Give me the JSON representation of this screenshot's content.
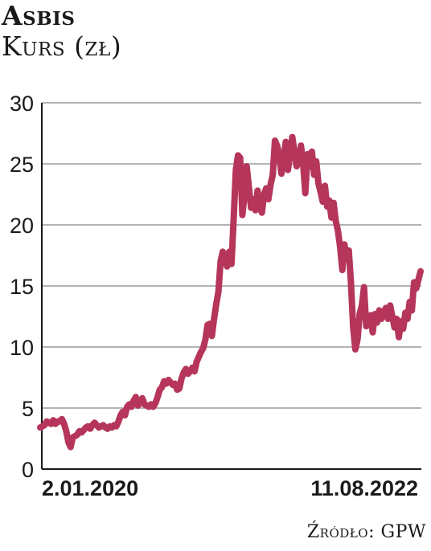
{
  "title": "Asbis",
  "subtitle": "Kurs (zł)",
  "source": "Źródło: GPW",
  "chart_data": {
    "type": "line",
    "ylim": [
      0,
      30
    ],
    "yticks": [
      0,
      5,
      10,
      15,
      20,
      25,
      30
    ],
    "grid": true,
    "line_color": "#b5365a",
    "x_start_label": "2.01.2020",
    "x_end_label": "11.08.2022",
    "series": [
      {
        "values": [
          3.4,
          3.5,
          3.6,
          3.9,
          3.8,
          3.7,
          4.0,
          3.7,
          3.9,
          3.9,
          4.1,
          3.7,
          3.1,
          2.2,
          1.8,
          2.6,
          2.7,
          2.8,
          3.1,
          3.0,
          3.2,
          3.4,
          3.5,
          3.3,
          3.6,
          3.8,
          3.6,
          3.4,
          3.5,
          3.6,
          3.4,
          3.3,
          3.5,
          3.4,
          3.6,
          3.5,
          3.9,
          4.4,
          4.7,
          4.4,
          5.1,
          5.3,
          5.1,
          5.6,
          5.9,
          5.2,
          5.5,
          5.8,
          5.3,
          5.2,
          5.1,
          5.3,
          5.1,
          5.4,
          5.9,
          6.5,
          6.7,
          7.2,
          7.0,
          7.3,
          7.1,
          6.9,
          7.0,
          6.5,
          6.6,
          7.4,
          7.9,
          8.2,
          7.8,
          8.0,
          8.3,
          8.0,
          8.8,
          9.2,
          9.6,
          9.9,
          10.6,
          11.8,
          11.9,
          10.9,
          12.3,
          13.5,
          14.5,
          17.0,
          17.8,
          17.2,
          16.6,
          17.8,
          16.8,
          20.5,
          24.5,
          25.7,
          25.5,
          20.8,
          22.5,
          24.8,
          23.1,
          21.4,
          22.1,
          21.2,
          22.8,
          21.5,
          21.0,
          22.5,
          23.0,
          22.1,
          23.3,
          24.1,
          26.9,
          26.5,
          25.7,
          24.2,
          25.5,
          26.8,
          24.5,
          25.8,
          27.2,
          26.0,
          24.8,
          25.2,
          26.5,
          25.0,
          22.6,
          25.8,
          24.8,
          26.0,
          24.1,
          25.2,
          23.4,
          22.7,
          21.9,
          23.2,
          21.5,
          22.0,
          20.6,
          21.8,
          20.3,
          19.5,
          18.2,
          16.3,
          18.4,
          17.2,
          17.9,
          15.2,
          11.6,
          9.8,
          10.6,
          12.7,
          13.4,
          14.9,
          11.7,
          12.2,
          12.6,
          11.2,
          12.7,
          12.0,
          13.0,
          12.3,
          12.8,
          13.2,
          12.3,
          13.4,
          12.5,
          11.6,
          12.3,
          10.8,
          12.1,
          11.5,
          12.8,
          12.3,
          13.7,
          13.0,
          15.3,
          14.8,
          15.5,
          16.2
        ]
      }
    ]
  }
}
